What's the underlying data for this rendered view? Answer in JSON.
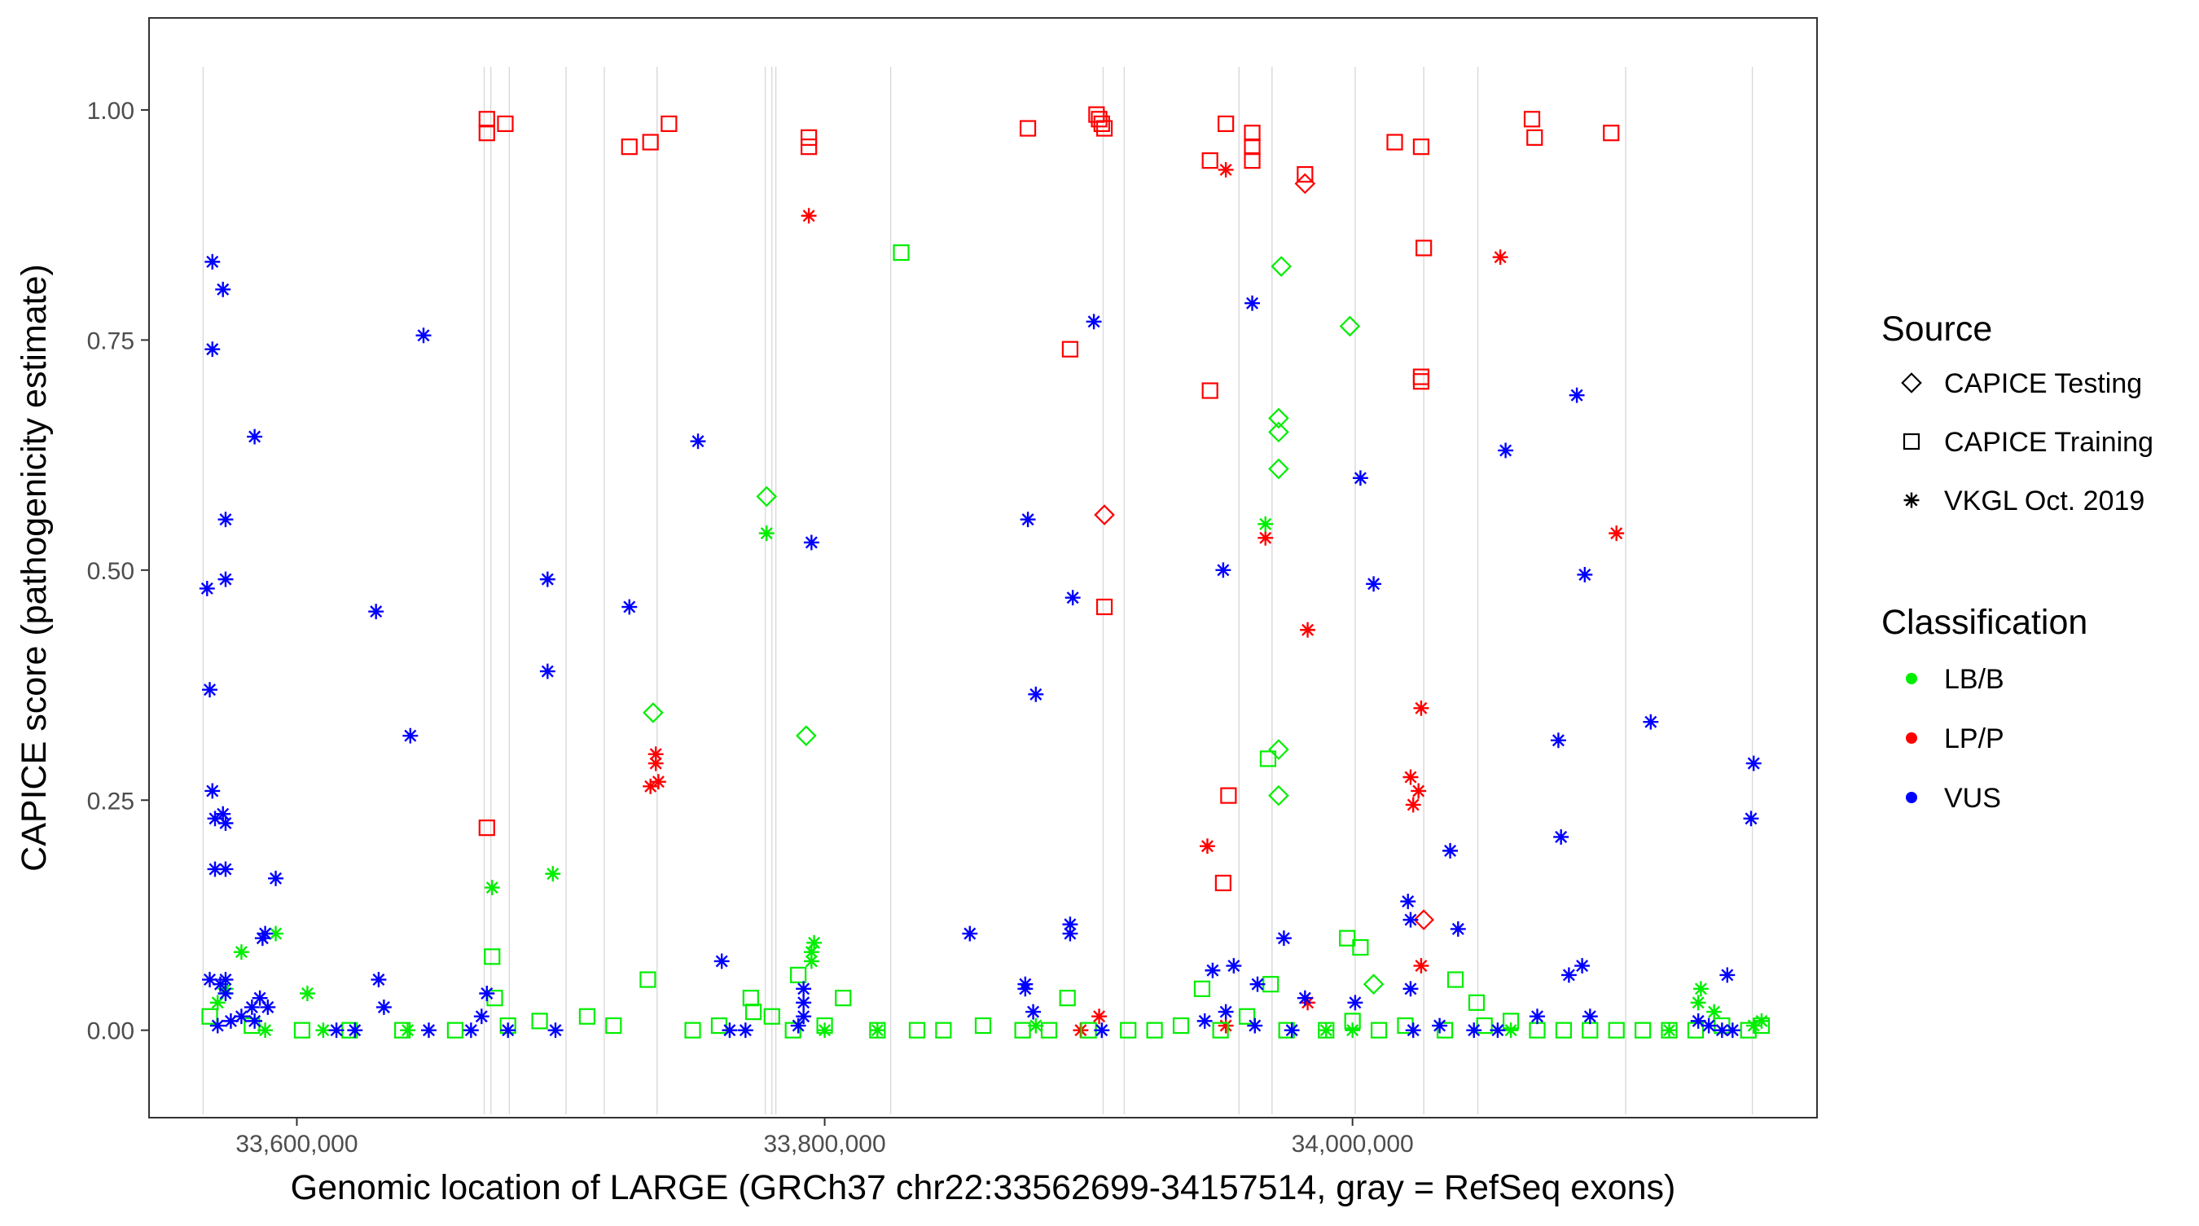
{
  "chart_data": {
    "type": "scatter",
    "title": "",
    "xlabel": "Genomic location of LARGE (GRCh37 chr22:33562699-34157514, gray = RefSeq exons)",
    "ylabel": "CAPICE score (pathogenicity estimate)",
    "xlim": [
      33544000,
      34176000
    ],
    "ylim": [
      -0.095,
      1.1
    ],
    "x_ticks": [
      33600000,
      33800000,
      34000000
    ],
    "x_tick_labels": [
      "33,600,000",
      "33,800,000",
      "34,000,000"
    ],
    "y_ticks": [
      0.0,
      0.25,
      0.5,
      0.75,
      1.0
    ],
    "y_tick_labels": [
      "0.00",
      "0.25",
      "0.50",
      "0.75",
      "1.00"
    ],
    "exons": [
      33564500,
      33671000,
      33673500,
      33680500,
      33702000,
      33716500,
      33736500,
      33777500,
      33780000,
      33781500,
      33825000,
      33905500,
      33913500,
      33957000,
      33969500,
      34001000,
      34027000,
      34047500,
      34103500,
      34151500
    ],
    "grid": false,
    "legend_position": "right",
    "legend": {
      "source_title": "Source",
      "source_items": [
        {
          "label": "CAPICE Testing",
          "marker": "diamond"
        },
        {
          "label": "CAPICE Training",
          "marker": "square"
        },
        {
          "label": "VKGL Oct. 2019",
          "marker": "asterisk"
        }
      ],
      "class_title": "Classification",
      "class_items": [
        {
          "label": "LB/B",
          "color": "#00ee00"
        },
        {
          "label": "LP/P",
          "color": "#ff0000"
        },
        {
          "label": "VUS",
          "color": "#0000ff"
        }
      ]
    },
    "colors": {
      "LB/B": "#00ee00",
      "LP/P": "#ff0000",
      "VUS": "#0000ff"
    },
    "series": [
      {
        "name": "CAPICE Training / LP/P",
        "source": "CAPICE Training",
        "classification": "LP/P",
        "points": [
          [
            33672000,
            0.99
          ],
          [
            33672000,
            0.975
          ],
          [
            33679000,
            0.985
          ],
          [
            33672000,
            0.22
          ],
          [
            33726000,
            0.96
          ],
          [
            33734000,
            0.965
          ],
          [
            33741000,
            0.985
          ],
          [
            33794000,
            0.97
          ],
          [
            33794000,
            0.96
          ],
          [
            33877000,
            0.98
          ],
          [
            33903000,
            0.995
          ],
          [
            33904000,
            0.99
          ],
          [
            33905000,
            0.985
          ],
          [
            33906000,
            0.98
          ],
          [
            33893000,
            0.74
          ],
          [
            33906000,
            0.46
          ],
          [
            33946000,
            0.945
          ],
          [
            33952000,
            0.985
          ],
          [
            33962000,
            0.975
          ],
          [
            33962000,
            0.96
          ],
          [
            33962000,
            0.945
          ],
          [
            33982000,
            0.93
          ],
          [
            33946000,
            0.695
          ],
          [
            33953000,
            0.255
          ],
          [
            33951000,
            0.16
          ],
          [
            34016000,
            0.965
          ],
          [
            34026000,
            0.96
          ],
          [
            34027000,
            0.85
          ],
          [
            34026000,
            0.71
          ],
          [
            34026000,
            0.705
          ],
          [
            34068000,
            0.99
          ],
          [
            34069000,
            0.97
          ],
          [
            34098000,
            0.975
          ]
        ]
      },
      {
        "name": "CAPICE Testing / LP/P",
        "source": "CAPICE Testing",
        "classification": "LP/P",
        "points": [
          [
            33982000,
            0.92
          ],
          [
            33906000,
            0.56
          ],
          [
            34027000,
            0.12
          ]
        ]
      },
      {
        "name": "VKGL / LP/P",
        "source": "VKGL Oct. 2019",
        "classification": "LP/P",
        "points": [
          [
            33794000,
            0.885
          ],
          [
            33736000,
            0.3
          ],
          [
            33736000,
            0.29
          ],
          [
            33737000,
            0.27
          ],
          [
            33734000,
            0.265
          ],
          [
            33952000,
            0.935
          ],
          [
            33967000,
            0.535
          ],
          [
            33983000,
            0.435
          ],
          [
            34056000,
            0.84
          ],
          [
            34100000,
            0.54
          ],
          [
            33945000,
            0.2
          ],
          [
            34026000,
            0.35
          ],
          [
            34022000,
            0.275
          ],
          [
            34025000,
            0.26
          ],
          [
            34023000,
            0.245
          ],
          [
            34026000,
            0.07
          ],
          [
            33983000,
            0.03
          ],
          [
            33904000,
            0.015
          ],
          [
            33952000,
            0.005
          ],
          [
            33897000,
            0.0
          ]
        ]
      },
      {
        "name": "CAPICE Training / LB/B",
        "source": "CAPICE Training",
        "classification": "LB/B",
        "points": [
          [
            33829000,
            0.845
          ],
          [
            33968000,
            0.295
          ],
          [
            33969000,
            0.05
          ],
          [
            33674000,
            0.08
          ],
          [
            33675000,
            0.035
          ],
          [
            33733000,
            0.055
          ],
          [
            33772000,
            0.035
          ],
          [
            33790000,
            0.06
          ],
          [
            33807000,
            0.035
          ],
          [
            33892000,
            0.035
          ],
          [
            33998000,
            0.1
          ],
          [
            34003000,
            0.09
          ],
          [
            34039000,
            0.055
          ],
          [
            34047000,
            0.03
          ],
          [
            33943000,
            0.045
          ],
          [
            33567000,
            0.015
          ],
          [
            33583000,
            0.005
          ],
          [
            33602000,
            0.0
          ],
          [
            33620000,
            0.0
          ],
          [
            33640000,
            0.0
          ],
          [
            33660000,
            0.0
          ],
          [
            33680000,
            0.005
          ],
          [
            33692000,
            0.01
          ],
          [
            33710000,
            0.015
          ],
          [
            33720000,
            0.005
          ],
          [
            33750000,
            0.0
          ],
          [
            33760000,
            0.005
          ],
          [
            33773000,
            0.02
          ],
          [
            33780000,
            0.015
          ],
          [
            33788000,
            0.0
          ],
          [
            33800000,
            0.005
          ],
          [
            33820000,
            0.0
          ],
          [
            33835000,
            0.0
          ],
          [
            33845000,
            0.0
          ],
          [
            33860000,
            0.005
          ],
          [
            33875000,
            0.0
          ],
          [
            33885000,
            0.0
          ],
          [
            33900000,
            0.0
          ],
          [
            33915000,
            0.0
          ],
          [
            33925000,
            0.0
          ],
          [
            33935000,
            0.005
          ],
          [
            33950000,
            0.0
          ],
          [
            33960000,
            0.015
          ],
          [
            33975000,
            0.0
          ],
          [
            33990000,
            0.0
          ],
          [
            34000000,
            0.01
          ],
          [
            34010000,
            0.0
          ],
          [
            34020000,
            0.005
          ],
          [
            34035000,
            0.0
          ],
          [
            34050000,
            0.005
          ],
          [
            34060000,
            0.01
          ],
          [
            34070000,
            0.0
          ],
          [
            34080000,
            0.0
          ],
          [
            34090000,
            0.0
          ],
          [
            34100000,
            0.0
          ],
          [
            34110000,
            0.0
          ],
          [
            34120000,
            0.0
          ],
          [
            34130000,
            0.0
          ],
          [
            34140000,
            0.005
          ],
          [
            34150000,
            0.0
          ],
          [
            34155000,
            0.005
          ]
        ]
      },
      {
        "name": "CAPICE Testing / LB/B",
        "source": "CAPICE Testing",
        "classification": "LB/B",
        "points": [
          [
            33973000,
            0.83
          ],
          [
            33999000,
            0.765
          ],
          [
            33972000,
            0.665
          ],
          [
            33972000,
            0.65
          ],
          [
            33972000,
            0.61
          ],
          [
            33778000,
            0.58
          ],
          [
            33735000,
            0.345
          ],
          [
            33793000,
            0.32
          ],
          [
            33972000,
            0.305
          ],
          [
            33972000,
            0.255
          ],
          [
            34008000,
            0.05
          ]
        ]
      },
      {
        "name": "VKGL / LB/B",
        "source": "VKGL Oct. 2019",
        "classification": "LB/B",
        "points": [
          [
            33778000,
            0.54
          ],
          [
            33967000,
            0.55
          ],
          [
            33674000,
            0.155
          ],
          [
            33697000,
            0.17
          ],
          [
            33592000,
            0.105
          ],
          [
            33579000,
            0.085
          ],
          [
            33604000,
            0.04
          ],
          [
            33796000,
            0.095
          ],
          [
            33795000,
            0.085
          ],
          [
            33795000,
            0.075
          ],
          [
            34132000,
            0.045
          ],
          [
            34131000,
            0.03
          ],
          [
            34137000,
            0.02
          ],
          [
            33570000,
            0.03
          ],
          [
            33573000,
            0.045
          ],
          [
            33588000,
            0.0
          ],
          [
            33610000,
            0.0
          ],
          [
            33642000,
            0.0
          ],
          [
            33800000,
            0.0
          ],
          [
            33820000,
            0.0
          ],
          [
            33880000,
            0.005
          ],
          [
            33990000,
            0.0
          ],
          [
            34000000,
            0.0
          ],
          [
            34060000,
            0.0
          ],
          [
            34120000,
            0.0
          ],
          [
            34152000,
            0.005
          ],
          [
            34155000,
            0.01
          ]
        ]
      },
      {
        "name": "VKGL / VUS",
        "source": "VKGL Oct. 2019",
        "classification": "VUS",
        "points": [
          [
            33568000,
            0.835
          ],
          [
            33572000,
            0.805
          ],
          [
            33568000,
            0.74
          ],
          [
            33648000,
            0.755
          ],
          [
            33584000,
            0.645
          ],
          [
            33752000,
            0.64
          ],
          [
            33573000,
            0.555
          ],
          [
            33573000,
            0.49
          ],
          [
            33566000,
            0.48
          ],
          [
            33630000,
            0.455
          ],
          [
            33695000,
            0.49
          ],
          [
            33726000,
            0.46
          ],
          [
            33795000,
            0.53
          ],
          [
            33877000,
            0.555
          ],
          [
            33567000,
            0.37
          ],
          [
            33695000,
            0.39
          ],
          [
            33643000,
            0.32
          ],
          [
            33568000,
            0.26
          ],
          [
            33569000,
            0.23
          ],
          [
            33572000,
            0.235
          ],
          [
            33573000,
            0.225
          ],
          [
            33569000,
            0.175
          ],
          [
            33573000,
            0.175
          ],
          [
            33592000,
            0.165
          ],
          [
            33587000,
            0.1
          ],
          [
            33588000,
            0.105
          ],
          [
            33567000,
            0.055
          ],
          [
            33573000,
            0.055
          ],
          [
            33571000,
            0.05
          ],
          [
            33573000,
            0.04
          ],
          [
            33583000,
            0.025
          ],
          [
            33586000,
            0.035
          ],
          [
            33589000,
            0.025
          ],
          [
            33579000,
            0.015
          ],
          [
            33584000,
            0.01
          ],
          [
            33575000,
            0.01
          ],
          [
            33570000,
            0.005
          ],
          [
            33631000,
            0.055
          ],
          [
            33633000,
            0.025
          ],
          [
            33672000,
            0.04
          ],
          [
            33670000,
            0.015
          ],
          [
            33761000,
            0.075
          ],
          [
            33792000,
            0.045
          ],
          [
            33792000,
            0.03
          ],
          [
            33792000,
            0.015
          ],
          [
            33790000,
            0.005
          ],
          [
            33855000,
            0.105
          ],
          [
            33893000,
            0.115
          ],
          [
            33893000,
            0.105
          ],
          [
            33876000,
            0.05
          ],
          [
            33876000,
            0.045
          ],
          [
            33879000,
            0.02
          ],
          [
            33902000,
            0.77
          ],
          [
            33880000,
            0.365
          ],
          [
            33894000,
            0.47
          ],
          [
            33962000,
            0.79
          ],
          [
            33951000,
            0.5
          ],
          [
            34003000,
            0.6
          ],
          [
            34008000,
            0.485
          ],
          [
            34085000,
            0.69
          ],
          [
            34058000,
            0.63
          ],
          [
            34088000,
            0.495
          ],
          [
            34113000,
            0.335
          ],
          [
            34078000,
            0.315
          ],
          [
            34079000,
            0.21
          ],
          [
            34152000,
            0.29
          ],
          [
            34151000,
            0.23
          ],
          [
            34037000,
            0.195
          ],
          [
            34021000,
            0.14
          ],
          [
            34022000,
            0.12
          ],
          [
            34040000,
            0.11
          ],
          [
            33974000,
            0.1
          ],
          [
            33947000,
            0.065
          ],
          [
            33955000,
            0.07
          ],
          [
            33964000,
            0.05
          ],
          [
            33982000,
            0.035
          ],
          [
            34001000,
            0.03
          ],
          [
            34022000,
            0.045
          ],
          [
            34082000,
            0.06
          ],
          [
            34087000,
            0.07
          ],
          [
            34142000,
            0.06
          ],
          [
            34070000,
            0.015
          ],
          [
            34090000,
            0.015
          ],
          [
            34131000,
            0.01
          ],
          [
            34135000,
            0.005
          ],
          [
            33944000,
            0.01
          ],
          [
            33952000,
            0.02
          ],
          [
            33963000,
            0.005
          ],
          [
            33905000,
            0.0
          ],
          [
            34033000,
            0.005
          ],
          [
            34046000,
            0.0
          ],
          [
            34140000,
            0.0
          ],
          [
            34144000,
            0.0
          ],
          [
            33615000,
            0.0
          ],
          [
            33622000,
            0.0
          ],
          [
            33650000,
            0.0
          ],
          [
            33666000,
            0.0
          ],
          [
            33680000,
            0.0
          ],
          [
            33698000,
            0.0
          ],
          [
            33764000,
            0.0
          ],
          [
            33770000,
            0.0
          ],
          [
            33977000,
            0.0
          ],
          [
            34023000,
            0.0
          ],
          [
            34055000,
            0.0
          ]
        ]
      }
    ]
  }
}
